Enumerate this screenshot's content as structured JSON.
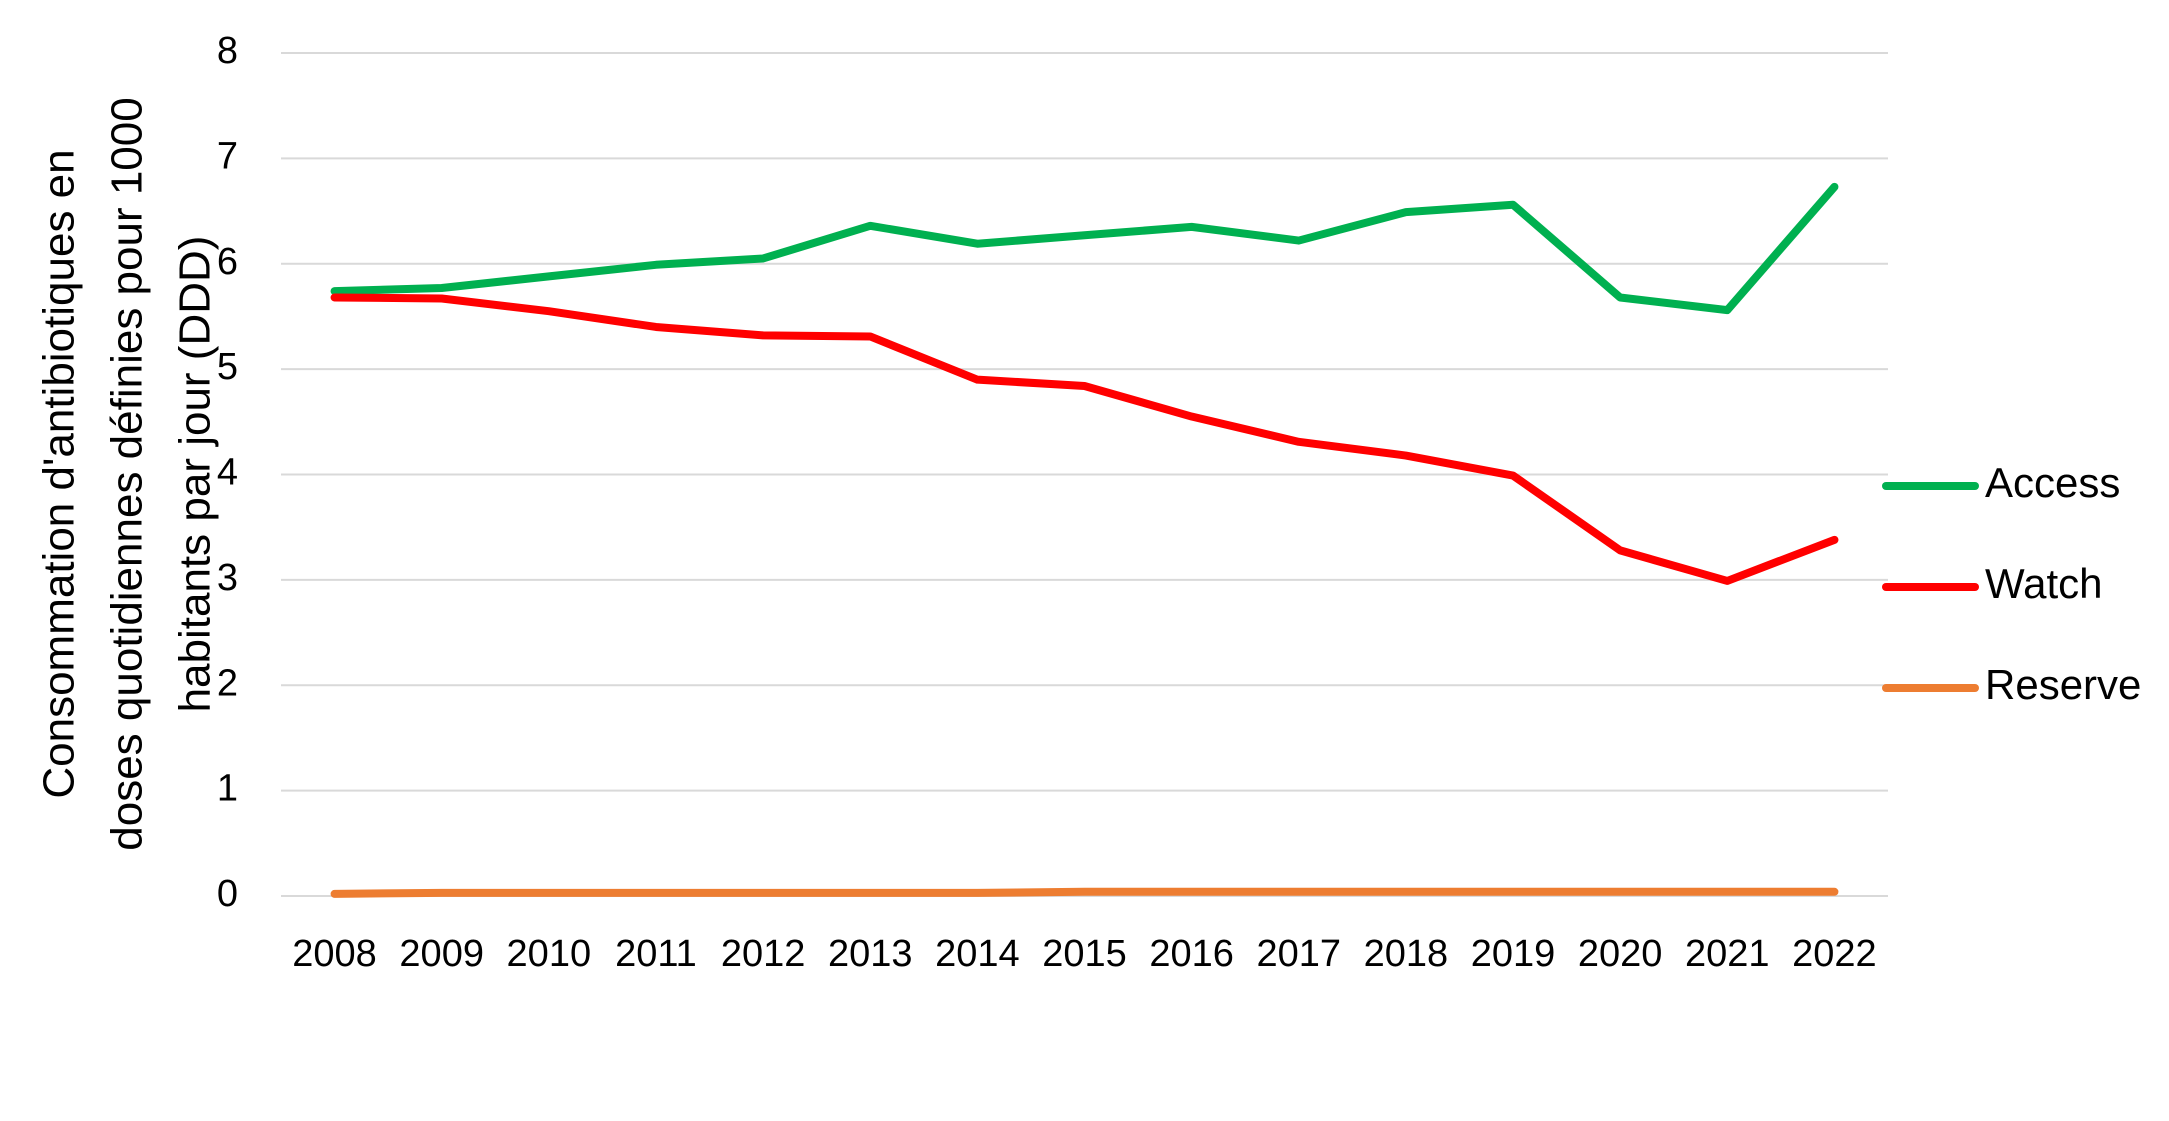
{
  "chart_data": {
    "type": "line",
    "ylabel": [
      "Consommation d'antibiotiques en",
      "doses quotidiennes définies pour 1000",
      "habitants par jour (DDD)"
    ],
    "categories": [
      "2008",
      "2009",
      "2010",
      "2011",
      "2012",
      "2013",
      "2014",
      "2015",
      "2016",
      "2017",
      "2018",
      "2019",
      "2020",
      "2021",
      "2022"
    ],
    "series": [
      {
        "name": "Access",
        "color": "#00b050",
        "values": [
          5.74,
          5.77,
          5.88,
          5.99,
          6.05,
          6.36,
          6.19,
          6.27,
          6.35,
          6.22,
          6.49,
          6.56,
          5.68,
          5.56,
          6.73
        ]
      },
      {
        "name": "Watch",
        "color": "#ff0000",
        "values": [
          5.68,
          5.67,
          5.55,
          5.4,
          5.32,
          5.31,
          4.9,
          4.84,
          4.55,
          4.31,
          4.18,
          3.99,
          3.28,
          2.99,
          3.38
        ]
      },
      {
        "name": "Reserve",
        "color": "#ed7d31",
        "values": [
          0.02,
          0.03,
          0.03,
          0.03,
          0.03,
          0.03,
          0.03,
          0.04,
          0.04,
          0.04,
          0.04,
          0.04,
          0.04,
          0.04,
          0.04
        ]
      }
    ],
    "ylim": [
      0,
      8
    ],
    "yticks": [
      0,
      1,
      2,
      3,
      4,
      5,
      6,
      7,
      8
    ],
    "grid": true,
    "legend": "right"
  }
}
